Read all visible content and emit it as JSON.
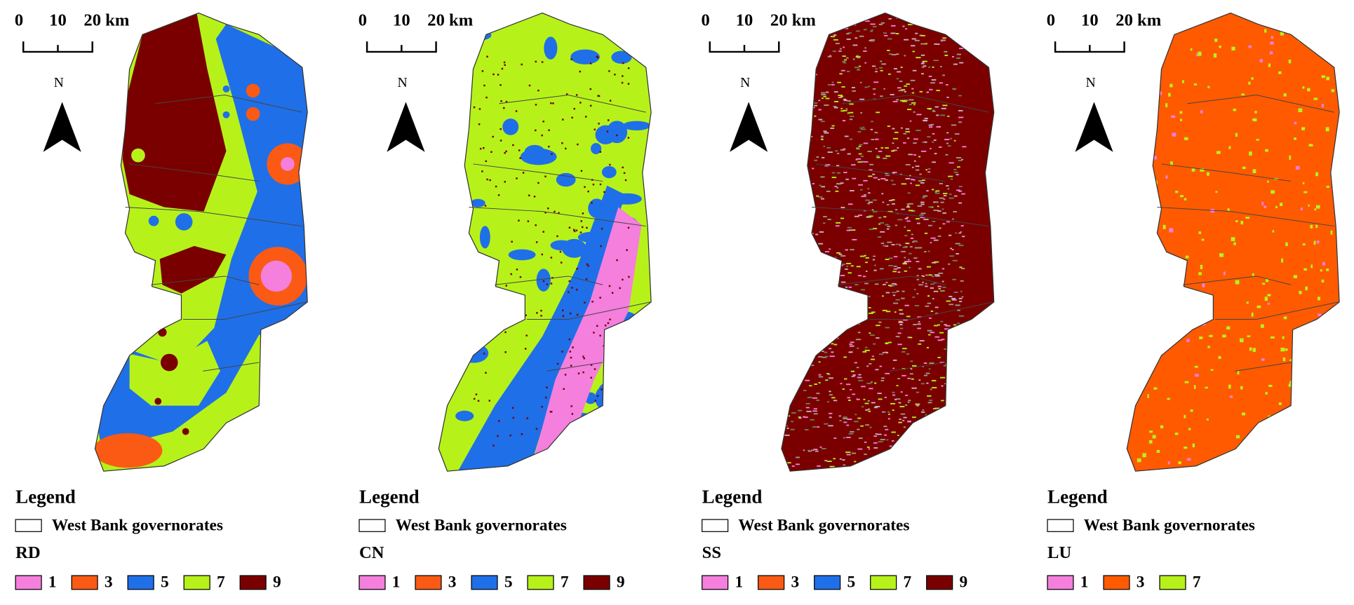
{
  "panels": [
    {
      "scale": [
        "0",
        "10",
        "20 km"
      ],
      "north": "N",
      "legend_title": "Legend",
      "boundary_label": "West Bank governorates",
      "layer": "RD",
      "classes": [
        {
          "label": "1",
          "color": "#f47fdc"
        },
        {
          "label": "3",
          "color": "#fb5a14"
        },
        {
          "label": "5",
          "color": "#1f6fe8"
        },
        {
          "label": "7",
          "color": "#b6f21a"
        },
        {
          "label": "9",
          "color": "#7a0000"
        }
      ]
    },
    {
      "scale": [
        "0",
        "10",
        "20 km"
      ],
      "north": "N",
      "legend_title": "Legend",
      "boundary_label": "West Bank governorates",
      "layer": "CN",
      "classes": [
        {
          "label": "1",
          "color": "#f47fdc"
        },
        {
          "label": "3",
          "color": "#fb5a14"
        },
        {
          "label": "5",
          "color": "#1f6fe8"
        },
        {
          "label": "7",
          "color": "#b6f21a"
        },
        {
          "label": "9",
          "color": "#7a0000"
        }
      ]
    },
    {
      "scale": [
        "0",
        "10",
        "20 km"
      ],
      "north": "N",
      "legend_title": "Legend",
      "boundary_label": "West Bank governorates",
      "layer": "SS",
      "classes": [
        {
          "label": "1",
          "color": "#f47fdc"
        },
        {
          "label": "3",
          "color": "#fb5a14"
        },
        {
          "label": "5",
          "color": "#1f6fe8"
        },
        {
          "label": "7",
          "color": "#b6f21a"
        },
        {
          "label": "9",
          "color": "#7a0000"
        }
      ]
    },
    {
      "scale": [
        "0",
        "10",
        "20 km"
      ],
      "north": "N",
      "legend_title": "Legend",
      "boundary_label": "West Bank governorates",
      "layer": "LU",
      "classes": [
        {
          "label": "1",
          "color": "#f47fdc"
        },
        {
          "label": "3",
          "color": "#ff5a00"
        },
        {
          "label": "7",
          "color": "#b6f21a"
        }
      ]
    }
  ]
}
